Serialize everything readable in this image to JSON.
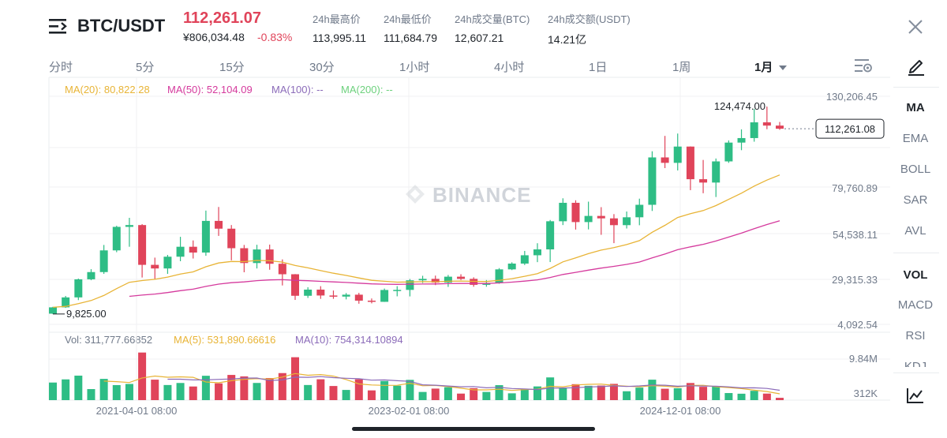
{
  "header": {
    "pair": "BTC/USDT",
    "price": "112,261.07",
    "price_cny": "¥806,034.48",
    "change_pct": "-0.83%",
    "stats": [
      {
        "label": "24h最高价",
        "value": "113,995.11"
      },
      {
        "label": "24h最低价",
        "value": "111,684.79"
      },
      {
        "label": "24h成交量(BTC)",
        "value": "12,607.21"
      },
      {
        "label": "24h成交额(USDT)",
        "value": "14.21亿"
      }
    ]
  },
  "timeframes": [
    "分时",
    "5分",
    "15分",
    "30分",
    "1小时",
    "4小时",
    "1日",
    "1周",
    "1月"
  ],
  "active_timeframe": "1月",
  "indicator_panel": {
    "main": [
      "MA",
      "EMA",
      "BOLL",
      "SAR",
      "AVL"
    ],
    "sub": [
      "VOL",
      "MACD",
      "RSI",
      "KDJ"
    ],
    "active_main": "MA",
    "active_sub": "VOL"
  },
  "ma_legend": [
    {
      "label": "MA(20): 80,822.28",
      "color": "#e8b436"
    },
    {
      "label": "MA(50): 52,104.09",
      "color": "#d53a9d"
    },
    {
      "label": "MA(100): --",
      "color": "#8b6bb9"
    },
    {
      "label": "MA(200): --",
      "color": "#6dd17d"
    }
  ],
  "vol_legend": [
    {
      "label": "Vol: 311,777.66852",
      "color": "#707a8a"
    },
    {
      "label": "MA(5): 531,890.66616",
      "color": "#e8b436"
    },
    {
      "label": "MA(10): 754,314.10894",
      "color": "#8b6bb9"
    }
  ],
  "watermark": "BINANCE",
  "colors": {
    "up": "#2ebd85",
    "down": "#e0445a",
    "ma20": "#e8b436",
    "ma50": "#d53a9d",
    "vol_ma10": "#8b6bb9"
  },
  "chart_data": {
    "type": "candlestick",
    "y_axis_labels": [
      "130,206.45",
      "79,760.89",
      "54,538.11",
      "29,315.33",
      "4,092.54"
    ],
    "volume_axis_labels": [
      "9.84M",
      "312K"
    ],
    "x_axis_labels": [
      "2021-04-01 08:00",
      "2023-02-01 08:00",
      "2024-12-01 08:00"
    ],
    "current_price_tag": "112,261.08",
    "high_marker": "124,474.00",
    "low_marker": "9,825.00",
    "ylim": [
      4092.54,
      130206.45
    ],
    "candles": [
      [
        10000,
        13500,
        9825,
        13800
      ],
      [
        13500,
        19000,
        13200,
        19800
      ],
      [
        19000,
        29000,
        17500,
        29400
      ],
      [
        29000,
        33000,
        28500,
        34600
      ],
      [
        33000,
        45000,
        32000,
        48000
      ],
      [
        45000,
        58000,
        44000,
        58600
      ],
      [
        58000,
        59000,
        47000,
        63000
      ],
      [
        59000,
        37000,
        30000,
        59500
      ],
      [
        37000,
        35000,
        29000,
        41000
      ],
      [
        35000,
        41500,
        32000,
        42500
      ],
      [
        41500,
        47000,
        39000,
        52500
      ],
      [
        47000,
        43800,
        40500,
        50500
      ],
      [
        43800,
        61300,
        42000,
        67000
      ],
      [
        61300,
        57000,
        53000,
        69000
      ],
      [
        57000,
        46200,
        39500,
        59000
      ],
      [
        46200,
        38000,
        32900,
        48000
      ],
      [
        38000,
        45500,
        35000,
        48100
      ],
      [
        45500,
        37600,
        34300,
        48200
      ],
      [
        37600,
        31800,
        25600,
        40000
      ],
      [
        31800,
        19900,
        17600,
        31900
      ],
      [
        19900,
        23300,
        18700,
        24600
      ],
      [
        23300,
        20050,
        18200,
        25200
      ],
      [
        20050,
        19450,
        18200,
        22800
      ],
      [
        19450,
        20500,
        17900,
        21400
      ],
      [
        20500,
        17200,
        15500,
        21500
      ],
      [
        17200,
        16550,
        15700,
        18400
      ],
      [
        16550,
        23100,
        16500,
        23900
      ],
      [
        23100,
        23150,
        19600,
        25200
      ],
      [
        23150,
        28450,
        19550,
        29200
      ],
      [
        28450,
        29250,
        26950,
        30950
      ],
      [
        29250,
        27200,
        25800,
        31050
      ],
      [
        27200,
        30450,
        24800,
        31400
      ],
      [
        30450,
        29250,
        28600,
        31800
      ],
      [
        29250,
        25950,
        24900,
        30100
      ],
      [
        25950,
        27000,
        24900,
        28600
      ],
      [
        27000,
        34500,
        26550,
        35200
      ],
      [
        34500,
        37700,
        34100,
        38400
      ],
      [
        37700,
        42300,
        36900,
        44700
      ],
      [
        42300,
        45550,
        38500,
        48950
      ],
      [
        45550,
        61100,
        38550,
        61800
      ],
      [
        61100,
        71300,
        59000,
        73800
      ],
      [
        71300,
        60650,
        56500,
        72700
      ],
      [
        60650,
        64050,
        56600,
        71950
      ],
      [
        64050,
        62700,
        53600,
        68900
      ],
      [
        62700,
        58950,
        49000,
        65050
      ],
      [
        58950,
        63300,
        57100,
        66500
      ],
      [
        63300,
        70200,
        58900,
        73600
      ],
      [
        70200,
        96400,
        66800,
        99800
      ],
      [
        96400,
        93400,
        90500,
        108300
      ],
      [
        93400,
        102400,
        89200,
        109600
      ],
      [
        102400,
        84350,
        78300,
        102500
      ],
      [
        84350,
        82500,
        76600,
        95000
      ],
      [
        82500,
        94200,
        74500,
        95800
      ],
      [
        94200,
        104600,
        93400,
        105800
      ],
      [
        104600,
        107100,
        100400,
        111900
      ],
      [
        107100,
        115800,
        105100,
        123200
      ],
      [
        115800,
        114000,
        112000,
        124474
      ],
      [
        114000,
        112261,
        111684,
        116000
      ]
    ]
  }
}
